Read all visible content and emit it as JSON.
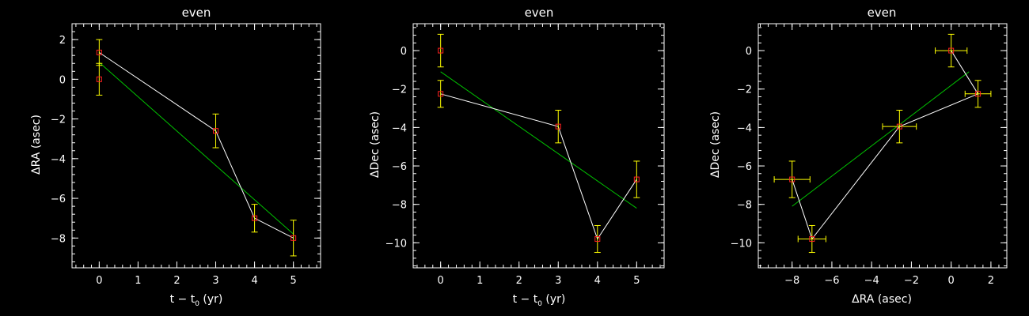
{
  "colors": {
    "background": "#000000",
    "frame": "#ffffff",
    "data_line": "#ffffff",
    "fit_line": "#00c000",
    "marker": "#ff2020",
    "error_bar": "#ffff00"
  },
  "chart_data": [
    {
      "type": "scatter",
      "title": "even",
      "xlabel": "t − t",
      "xlabel_sub": "0",
      "xlabel_tail": " (yr)",
      "ylabel": "ΔRA (asec)",
      "xlim": [
        -0.7,
        5.7
      ],
      "ylim": [
        -9.5,
        2.8
      ],
      "xticks": [
        0,
        1,
        2,
        3,
        4,
        5
      ],
      "yticks": [
        -8,
        -6,
        -4,
        -2,
        0,
        2
      ],
      "series": [
        {
          "x": [
            0,
            0,
            3,
            4,
            5
          ],
          "y": [
            0.0,
            1.35,
            -2.6,
            -7.0,
            -8.0
          ],
          "yerr": [
            0.8,
            0.65,
            0.85,
            0.7,
            0.9
          ],
          "line_points": [
            [
              0,
              1.35
            ],
            [
              3,
              -2.6
            ],
            [
              4,
              -7.0
            ],
            [
              5,
              -8.0
            ]
          ]
        }
      ],
      "fit": {
        "x": [
          0,
          5
        ],
        "y": [
          0.85,
          -7.8
        ]
      }
    },
    {
      "type": "scatter",
      "title": "even",
      "xlabel": "t − t",
      "xlabel_sub": "0",
      "xlabel_tail": " (yr)",
      "ylabel": "ΔDec (asec)",
      "xlim": [
        -0.7,
        5.7
      ],
      "ylim": [
        -11.3,
        1.4
      ],
      "xticks": [
        0,
        1,
        2,
        3,
        4,
        5
      ],
      "yticks": [
        -10,
        -8,
        -6,
        -4,
        -2,
        0
      ],
      "series": [
        {
          "x": [
            0,
            0,
            3,
            4,
            5
          ],
          "y": [
            0.0,
            -2.25,
            -3.95,
            -9.8,
            -6.7
          ],
          "yerr": [
            0.85,
            0.7,
            0.85,
            0.7,
            0.95
          ],
          "line_points": [
            [
              0,
              -2.25
            ],
            [
              3,
              -3.95
            ],
            [
              4,
              -9.8
            ],
            [
              5,
              -6.7
            ]
          ]
        }
      ],
      "fit": {
        "x": [
          0,
          5
        ],
        "y": [
          -1.1,
          -8.2
        ]
      }
    },
    {
      "type": "scatter",
      "title": "even",
      "xlabel": "ΔRA (asec)",
      "ylabel": "ΔDec (asec)",
      "xlim": [
        -9.7,
        2.8
      ],
      "ylim": [
        -11.3,
        1.4
      ],
      "xticks": [
        -8,
        -6,
        -4,
        -2,
        0,
        2
      ],
      "yticks": [
        -10,
        -8,
        -6,
        -4,
        -2,
        0
      ],
      "series": [
        {
          "x": [
            0.0,
            1.35,
            -2.6,
            -7.0,
            -8.0
          ],
          "y": [
            0.0,
            -2.25,
            -3.95,
            -9.8,
            -6.7
          ],
          "xerr": [
            0.8,
            0.65,
            0.85,
            0.7,
            0.9
          ],
          "yerr": [
            0.85,
            0.7,
            0.85,
            0.7,
            0.95
          ],
          "line_points": [
            [
              0.0,
              0.0
            ],
            [
              1.35,
              -2.25
            ],
            [
              -2.6,
              -3.95
            ],
            [
              -7.0,
              -9.8
            ],
            [
              -8.0,
              -6.7
            ]
          ]
        }
      ],
      "fit": {
        "x": [
          -8.0,
          0.9
        ],
        "y": [
          -8.1,
          -1.1
        ]
      }
    }
  ]
}
